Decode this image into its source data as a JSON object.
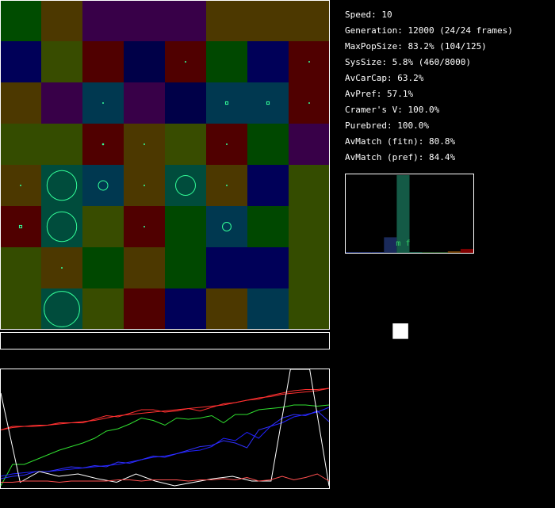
{
  "stats": [
    {
      "id": "speed",
      "text": "Speed: 10"
    },
    {
      "id": "generation",
      "text": "Generation: 12000 (24/24 frames)"
    },
    {
      "id": "maxpopsize",
      "text": "MaxPopSize: 83.2% (104/125)"
    },
    {
      "id": "syssize",
      "text": "SysSize: 5.8% (460/8000)"
    },
    {
      "id": "avcarcap",
      "text": "AvCarCap: 63.2%"
    },
    {
      "id": "avpref",
      "text": "AvPref: 57.1%"
    },
    {
      "id": "cramers-v",
      "text": "Cramer's V: 100.0%"
    },
    {
      "id": "purebred",
      "text": "Purebred: 100.0%"
    },
    {
      "id": "avmatch-fitn",
      "text": "AvMatch (fitn): 80.8%"
    },
    {
      "id": "avmatch-pref",
      "text": "AvMatch (pref): 84.4%"
    }
  ],
  "grid": {
    "cols": 8,
    "rows": 8,
    "cells": [
      [
        "#004c00",
        "#4c3800",
        "#380048",
        "#380048",
        "#380048",
        "#4c3800",
        "#4c3800",
        "#4c3800"
      ],
      [
        "#000058",
        "#384c00",
        "#500000",
        "#000048",
        "#500000",
        "#004800",
        "#000058",
        "#500000"
      ],
      [
        "#4c3800",
        "#380048",
        "#003850",
        "#380048",
        "#000048",
        "#003850",
        "#003850",
        "#500000"
      ],
      [
        "#344c00",
        "#344c00",
        "#500000",
        "#4c3800",
        "#384c00",
        "#500000",
        "#004800",
        "#380048"
      ],
      [
        "#4c3800",
        "#004c3c",
        "#003850",
        "#4c3800",
        "#004c3c",
        "#4c3800",
        "#000058",
        "#344c00"
      ],
      [
        "#500000",
        "#004c3c",
        "#384c00",
        "#500000",
        "#004800",
        "#003850",
        "#004800",
        "#344c00"
      ],
      [
        "#344c00",
        "#4c3800",
        "#004800",
        "#4c3800",
        "#004800",
        "#000058",
        "#000058",
        "#344c00"
      ],
      [
        "#344c00",
        "#004c3c",
        "#384c00",
        "#500000",
        "#000058",
        "#4c3800",
        "#003850",
        "#344c00"
      ]
    ],
    "agent_color": "#33ff99",
    "agents": [
      {
        "row": 1,
        "col": 4,
        "shape": "dot",
        "size": 0.03
      },
      {
        "row": 1,
        "col": 7,
        "shape": "dot",
        "size": 0.03
      },
      {
        "row": 2,
        "col": 2,
        "shape": "dot",
        "size": 0.03
      },
      {
        "row": 2,
        "col": 5,
        "shape": "square",
        "size": 0.06
      },
      {
        "row": 2,
        "col": 6,
        "shape": "square",
        "size": 0.06
      },
      {
        "row": 2,
        "col": 7,
        "shape": "dot",
        "size": 0.03
      },
      {
        "row": 3,
        "col": 2,
        "shape": "dot",
        "size": 0.05
      },
      {
        "row": 3,
        "col": 3,
        "shape": "dot",
        "size": 0.03
      },
      {
        "row": 3,
        "col": 5,
        "shape": "dot",
        "size": 0.03
      },
      {
        "row": 4,
        "col": 0,
        "shape": "dot",
        "size": 0.03
      },
      {
        "row": 4,
        "col": 1,
        "shape": "circle",
        "size": 0.72
      },
      {
        "row": 4,
        "col": 2,
        "shape": "circle",
        "size": 0.23
      },
      {
        "row": 4,
        "col": 3,
        "shape": "dot",
        "size": 0.03
      },
      {
        "row": 4,
        "col": 4,
        "shape": "circle",
        "size": 0.48
      },
      {
        "row": 4,
        "col": 5,
        "shape": "dot",
        "size": 0.03
      },
      {
        "row": 5,
        "col": 0,
        "shape": "square",
        "size": 0.06
      },
      {
        "row": 5,
        "col": 1,
        "shape": "circle",
        "size": 0.72
      },
      {
        "row": 5,
        "col": 3,
        "shape": "dot",
        "size": 0.03
      },
      {
        "row": 5,
        "col": 5,
        "shape": "circle",
        "size": 0.21
      },
      {
        "row": 6,
        "col": 1,
        "shape": "dot",
        "size": 0.03
      },
      {
        "row": 7,
        "col": 1,
        "shape": "circle",
        "size": 0.86
      }
    ]
  },
  "plot": {
    "series": [
      {
        "color": "#ff3030",
        "values": [
          0.49,
          0.52,
          0.52,
          0.53,
          0.53,
          0.55,
          0.55,
          0.55,
          0.58,
          0.61,
          0.6,
          0.63,
          0.66,
          0.66,
          0.64,
          0.65,
          0.67,
          0.65,
          0.68,
          0.71,
          0.72,
          0.74,
          0.75,
          0.78,
          0.8,
          0.82,
          0.83,
          0.83,
          0.84
        ]
      },
      {
        "color": "#ff3030",
        "values": [
          0.49,
          0.51,
          0.52,
          0.52,
          0.53,
          0.54,
          0.55,
          0.56,
          0.57,
          0.59,
          0.61,
          0.62,
          0.63,
          0.64,
          0.65,
          0.66,
          0.67,
          0.68,
          0.69,
          0.7,
          0.72,
          0.74,
          0.76,
          0.77,
          0.79,
          0.8,
          0.81,
          0.82,
          0.84
        ]
      },
      {
        "color": "#30e030",
        "values": [
          0.02,
          0.2,
          0.2,
          0.24,
          0.28,
          0.32,
          0.35,
          0.38,
          0.42,
          0.48,
          0.5,
          0.54,
          0.59,
          0.57,
          0.53,
          0.59,
          0.58,
          0.59,
          0.61,
          0.55,
          0.62,
          0.62,
          0.66,
          0.67,
          0.68,
          0.7,
          0.7,
          0.69,
          0.7
        ]
      },
      {
        "color": "#2020ff",
        "values": [
          0.1,
          0.12,
          0.13,
          0.14,
          0.14,
          0.15,
          0.16,
          0.17,
          0.18,
          0.19,
          0.2,
          0.22,
          0.24,
          0.26,
          0.27,
          0.29,
          0.31,
          0.32,
          0.35,
          0.42,
          0.4,
          0.47,
          0.42,
          0.52,
          0.55,
          0.6,
          0.62,
          0.64,
          0.68
        ]
      },
      {
        "color": "#3030ff",
        "values": [
          0.08,
          0.1,
          0.11,
          0.14,
          0.14,
          0.16,
          0.18,
          0.17,
          0.19,
          0.18,
          0.22,
          0.21,
          0.24,
          0.27,
          0.26,
          0.29,
          0.32,
          0.35,
          0.36,
          0.4,
          0.38,
          0.34,
          0.49,
          0.52,
          0.59,
          0.62,
          0.61,
          0.65,
          0.56
        ]
      },
      {
        "color": "#ffffff",
        "values": [
          0.8,
          0.05,
          0.14,
          0.1,
          0.12,
          0.08,
          0.05,
          0.12,
          0.06,
          0.02,
          0.05,
          0.08,
          0.1,
          0.06,
          0.06,
          1.0,
          1.0,
          0.02
        ]
      },
      {
        "color": "#ff5050",
        "values": [
          0.05,
          0.05,
          0.06,
          0.06,
          0.06,
          0.05,
          0.06,
          0.06,
          0.06,
          0.06,
          0.07,
          0.07,
          0.06,
          0.07,
          0.07,
          0.07,
          0.06,
          0.07,
          0.07,
          0.08,
          0.07,
          0.09,
          0.06,
          0.07,
          0.1,
          0.07,
          0.09,
          0.12,
          0.06
        ]
      }
    ]
  },
  "histogram": {
    "labels": [
      "m",
      "f"
    ],
    "label_color": "#33cc66",
    "bars": [
      {
        "value": 0.01,
        "color": "#1a2a6a"
      },
      {
        "value": 0.01,
        "color": "#1a2a6a"
      },
      {
        "value": 0.01,
        "color": "#1a2a6a"
      },
      {
        "value": 0.2,
        "color": "#1a2a5a"
      },
      {
        "value": 1.0,
        "color": "#145a46"
      },
      {
        "value": 0.01,
        "color": "#145a46"
      },
      {
        "value": 0.01,
        "color": "#1a4a1a"
      },
      {
        "value": 0.01,
        "color": "#1a4a1a"
      },
      {
        "value": 0.02,
        "color": "#6a3a00"
      },
      {
        "value": 0.05,
        "color": "#800000"
      }
    ]
  },
  "colorbox": {
    "marker": {
      "x": 0.43,
      "y": 0.44,
      "size": 0.12
    },
    "marker_color": "#ffffff"
  }
}
